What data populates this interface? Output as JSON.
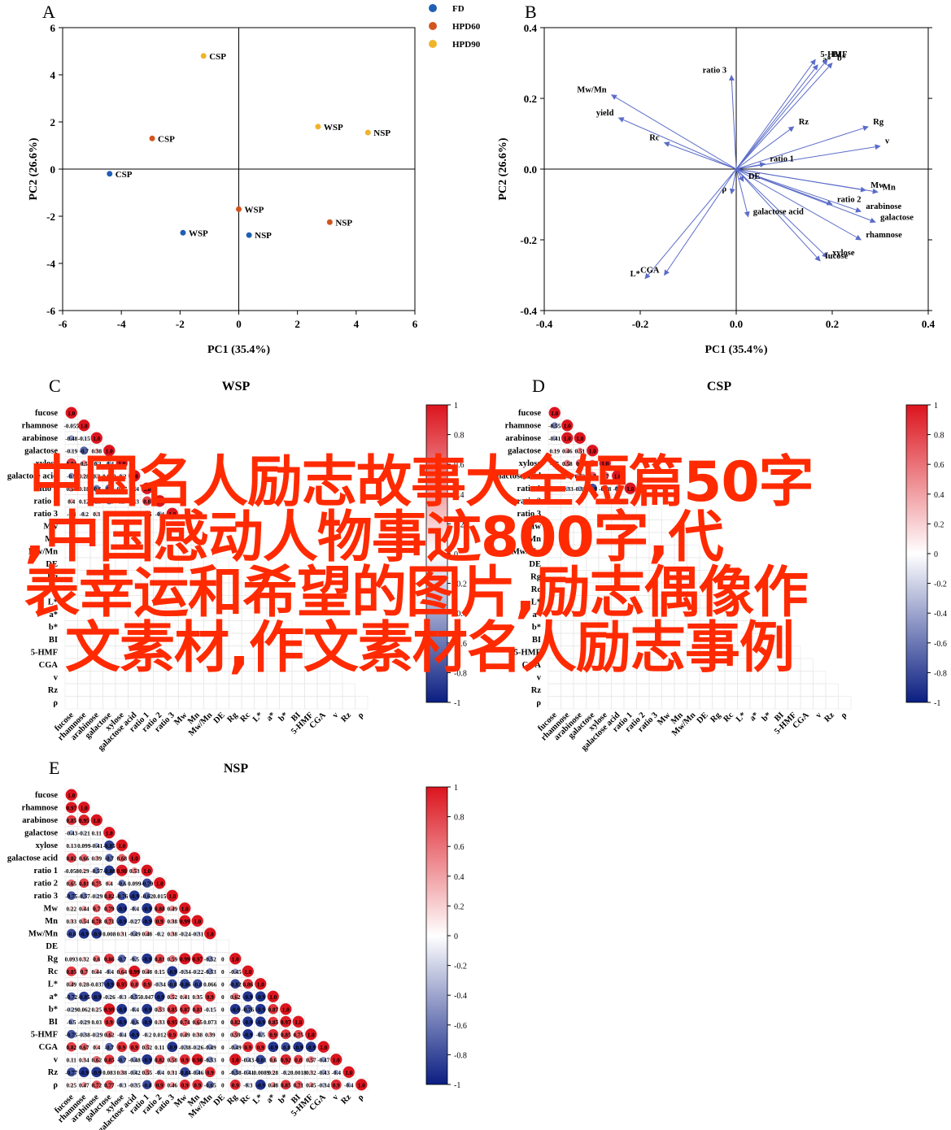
{
  "panels": {
    "A": {
      "letter": "A",
      "xlabel": "PC1 (35.4%)",
      "ylabel": "PC2 (26.6%)",
      "xlim": [
        -6,
        6
      ],
      "ylim": [
        -6,
        6
      ],
      "xticks": [
        "-6",
        "-4",
        "-2",
        "0",
        "2",
        "4",
        "6"
      ],
      "yticks": [
        "-6",
        "-4",
        "-2",
        "0",
        "2",
        "4",
        "6"
      ],
      "legend": [
        {
          "name": "FD",
          "color": "#1f5fb4"
        },
        {
          "name": "HPD60",
          "color": "#d2551e"
        },
        {
          "name": "HPD90",
          "color": "#efb42a"
        }
      ]
    },
    "B": {
      "letter": "B",
      "xlabel": "PC1 (35.4%)",
      "ylabel": "PC2 (26.6%)",
      "xlim": [
        -0.4,
        0.4
      ],
      "ylim": [
        -0.4,
        0.4
      ],
      "xticks": [
        "-0.4",
        "-0.2",
        "0.0",
        "0.2",
        "0.4"
      ],
      "yticks": [
        "-0.4",
        "-0.2",
        "0.0",
        "0.2",
        "0.4"
      ]
    },
    "C": {
      "letter": "C",
      "title": "WSP"
    },
    "D": {
      "letter": "D",
      "title": "CSP"
    },
    "E": {
      "letter": "E",
      "title": "NSP"
    }
  },
  "heatmap_variables": [
    "fucose",
    "rhamnose",
    "arabinose",
    "galactose",
    "xylose",
    "galactose acid",
    "ratio 1",
    "ratio 2",
    "ratio 3",
    "Mw",
    "Mn",
    "Mw/Mn",
    "DE",
    "Rg",
    "Rc",
    "L*",
    "a*",
    "b*",
    "BI",
    "5-HMF",
    "CGA",
    "v",
    "Rz",
    "ρ"
  ],
  "colorbar_ticks": [
    "1",
    "0.8",
    "0.6",
    "0.4",
    "0.2",
    "0",
    "-0.2",
    "-0.4",
    "-0.6",
    "-0.8",
    "-1"
  ],
  "overlay_text": [
    "中国名人励志故事大全短篇50字",
    ",中国感动人物事迹800字,代",
    "表幸运和希望的图片,励志偶像作",
    "文素材,作文素材名人励志事例"
  ],
  "chart_data": [
    {
      "type": "scatter",
      "panel": "A",
      "xlabel": "PC1 (35.4%)",
      "ylabel": "PC2 (26.6%)",
      "xlim": [
        -6,
        6
      ],
      "ylim": [
        -6,
        6
      ],
      "series": [
        {
          "name": "FD",
          "color": "#1f5fb4",
          "points": [
            {
              "x": -4.4,
              "y": -0.2,
              "label": "CSP"
            },
            {
              "x": -1.9,
              "y": -2.7,
              "label": "WSP"
            },
            {
              "x": 0.35,
              "y": -2.8,
              "label": "NSP"
            }
          ]
        },
        {
          "name": "HPD60",
          "color": "#d2551e",
          "points": [
            {
              "x": -2.95,
              "y": 1.3,
              "label": "CSP"
            },
            {
              "x": 0.0,
              "y": -1.7,
              "label": "WSP"
            },
            {
              "x": 3.1,
              "y": -2.25,
              "label": "NSP"
            }
          ]
        },
        {
          "name": "HPD90",
          "color": "#efb42a",
          "points": [
            {
              "x": -1.2,
              "y": 4.8,
              "label": "CSP"
            },
            {
              "x": 2.7,
              "y": 1.8,
              "label": "WSP"
            },
            {
              "x": 4.4,
              "y": 1.55,
              "label": "NSP"
            }
          ]
        }
      ]
    },
    {
      "type": "scatter",
      "panel": "B",
      "subtype": "loading vectors",
      "xlabel": "PC1 (35.4%)",
      "ylabel": "PC2 (26.6%)",
      "xlim": [
        -0.4,
        0.4
      ],
      "ylim": [
        -0.4,
        0.4
      ],
      "vectors": [
        {
          "label": "ratio 3",
          "x": -0.01,
          "y": 0.265
        },
        {
          "label": "Mw/Mn",
          "x": -0.26,
          "y": 0.21
        },
        {
          "label": "yield",
          "x": -0.245,
          "y": 0.145
        },
        {
          "label": "Rc",
          "x": -0.15,
          "y": 0.075
        },
        {
          "label": "5-HMF",
          "x": 0.165,
          "y": 0.31
        },
        {
          "label": "a*",
          "x": 0.17,
          "y": 0.295
        },
        {
          "label": "BI",
          "x": 0.19,
          "y": 0.31
        },
        {
          "label": "b*",
          "x": 0.2,
          "y": 0.3
        },
        {
          "label": "Rz",
          "x": 0.12,
          "y": 0.12
        },
        {
          "label": "Rg",
          "x": 0.275,
          "y": 0.12
        },
        {
          "label": "v",
          "x": 0.3,
          "y": 0.065
        },
        {
          "label": "ratio 1",
          "x": 0.06,
          "y": 0.015
        },
        {
          "label": "Mw",
          "x": 0.27,
          "y": -0.06
        },
        {
          "label": "Mn",
          "x": 0.295,
          "y": -0.065
        },
        {
          "label": "ratio 2",
          "x": 0.2,
          "y": -0.1
        },
        {
          "label": "arabinose",
          "x": 0.26,
          "y": -0.12
        },
        {
          "label": "galactose",
          "x": 0.29,
          "y": -0.15
        },
        {
          "label": "rhamnose",
          "x": 0.26,
          "y": -0.2
        },
        {
          "label": "xylose",
          "x": 0.19,
          "y": -0.25
        },
        {
          "label": "fucose",
          "x": 0.175,
          "y": -0.26
        },
        {
          "label": "DE",
          "x": 0.015,
          "y": -0.035
        },
        {
          "label": "ρ",
          "x": -0.01,
          "y": -0.07
        },
        {
          "label": "galactose acid",
          "x": 0.025,
          "y": -0.135
        },
        {
          "label": "L*",
          "x": -0.19,
          "y": -0.31
        },
        {
          "label": "CGA",
          "x": -0.15,
          "y": -0.3
        }
      ]
    },
    {
      "type": "heatmap",
      "panel": "C",
      "title": "WSP",
      "variables": [
        "fucose",
        "rhamnose",
        "arabinose",
        "galactose",
        "xylose",
        "galactose acid",
        "ratio 1",
        "ratio 2",
        "ratio 3",
        "Mw",
        "Mn",
        "Mw/Mn",
        "DE",
        "Rg",
        "Rc",
        "L*",
        "a*",
        "b*",
        "BI",
        "5-HMF",
        "CGA",
        "v",
        "Rz",
        "ρ"
      ],
      "shape": "lower-triangle",
      "range": [
        -1,
        1
      ],
      "rows": [
        [
          1
        ],
        [
          -0.055,
          1
        ],
        [
          -0.48,
          -0.15,
          1
        ],
        [
          -0.19,
          -0.7,
          0.38,
          1
        ],
        [
          0.84,
          0.5,
          -0.3,
          -0.4,
          1
        ],
        [
          -0.5,
          0.28,
          0.3,
          0.043,
          -0.2,
          1
        ],
        [
          0.54,
          0.18,
          -0.6,
          -0.7,
          0.37,
          -0.4,
          1
        ],
        [
          0.4,
          0.12,
          -0.5,
          -0.6,
          0.5,
          -0.3,
          0.8,
          1
        ],
        [
          -0.3,
          -0.2,
          0.3,
          0.2,
          -0.4,
          0.2,
          -0.5,
          -0.4,
          1
        ]
      ]
    },
    {
      "type": "heatmap",
      "panel": "D",
      "title": "CSP",
      "variables": [
        "fucose",
        "rhamnose",
        "arabinose",
        "galactose",
        "xylose",
        "galactose acid",
        "ratio 1",
        "ratio 2",
        "ratio 3",
        "Mw",
        "Mn",
        "Mw/Mn",
        "DE",
        "Rg",
        "Rc",
        "L*",
        "a*",
        "b*",
        "BI",
        "5-HMF",
        "CGA",
        "v",
        "Rz",
        "ρ"
      ],
      "shape": "lower-triangle",
      "range": [
        -1,
        1
      ],
      "rows": [
        [
          1
        ],
        [
          -0.55,
          1
        ],
        [
          -0.41,
          1.0,
          1
        ],
        [
          0.19,
          0.46,
          0.51,
          1
        ],
        [
          -0.5,
          0.58,
          0.7,
          0.6,
          1
        ],
        [
          0.18,
          0.47,
          0.52,
          0.7,
          0.7,
          1
        ],
        [
          0.33,
          -0.33,
          -0.39,
          -0.8,
          -0.58,
          -0.5,
          1
        ]
      ]
    },
    {
      "type": "heatmap",
      "panel": "E",
      "title": "NSP",
      "variables": [
        "fucose",
        "rhamnose",
        "arabinose",
        "galactose",
        "xylose",
        "galactose acid",
        "ratio 1",
        "ratio 2",
        "ratio 3",
        "Mw",
        "Mn",
        "Mw/Mn",
        "DE",
        "Rg",
        "Rc",
        "L*",
        "a*",
        "b*",
        "BI",
        "5-HMF",
        "CGA",
        "v",
        "Rz",
        "ρ"
      ],
      "shape": "lower-triangle",
      "range": [
        -1,
        1
      ],
      "rows": [
        [
          1
        ],
        [
          0.97,
          1
        ],
        [
          0.85,
          0.95,
          1
        ],
        [
          -0.43,
          -0.21,
          0.11,
          1
        ],
        [
          0.13,
          0.099,
          -0.41,
          -0.85,
          1
        ],
        [
          0.82,
          0.66,
          0.39,
          -0.7,
          0.68,
          1
        ],
        [
          -0.058,
          0.29,
          -0.57,
          -0.88,
          0.98,
          0.53,
          1
        ],
        [
          0.65,
          0.81,
          0.75,
          0.4,
          -0.6,
          0.099,
          -0.79,
          1
        ],
        [
          -0.75,
          -0.57,
          -0.29,
          0.82,
          -0.76,
          -0.9,
          -0.62,
          0.015,
          1
        ],
        [
          0.22,
          0.44,
          0.7,
          0.79,
          -0.9,
          -0.4,
          -0.9,
          0.88,
          0.49,
          1
        ],
        [
          0.33,
          0.54,
          0.78,
          0.71,
          -0.9,
          -0.27,
          -0.9,
          0.9,
          0.38,
          0.99,
          1
        ],
        [
          -0.8,
          -0.9,
          -0.9,
          0.008,
          0.31,
          -0.49,
          0.48,
          -0.2,
          0.38,
          -0.24,
          -0.31,
          1
        ],
        [
          0,
          0,
          0,
          0,
          0,
          0,
          0,
          0,
          0,
          0,
          0,
          0,
          0
        ],
        [
          0.093,
          0.32,
          0.6,
          0.86,
          -0.7,
          -0.5,
          -0.9,
          0.81,
          0.59,
          0.99,
          0.97,
          -0.52,
          0,
          1
        ],
        [
          0.85,
          0.7,
          0.44,
          -0.4,
          0.64,
          0.99,
          0.48,
          0.15,
          -0.9,
          -0.34,
          -0.22,
          -0.53,
          0,
          -0.45,
          1
        ],
        [
          0.49,
          0.28,
          -0.037,
          -0.9,
          0.95,
          0.8,
          0.9,
          -0.34,
          -0.8,
          -0.86,
          -0.8,
          0.066,
          0,
          -0.82,
          0.86,
          1
        ],
        [
          -0.72,
          -0.85,
          -0.9,
          -0.26,
          -0.3,
          -0.55,
          0.047,
          -0.9,
          0.52,
          0.41,
          0.35,
          0.9,
          0,
          0.62,
          -0.9,
          -0.9,
          1
        ],
        [
          -0.29,
          0.062,
          0.25,
          0.99,
          -0.9,
          -0.4,
          -0.9,
          0.53,
          0.85,
          0.87,
          0.81,
          -0.15,
          0,
          -0.9,
          -0.76,
          -0.9,
          0.87,
          1
        ],
        [
          -0.5,
          -0.29,
          0.03,
          0.9,
          -0.9,
          -0.6,
          -0.9,
          0.33,
          0.95,
          0.74,
          0.65,
          0.073,
          0,
          0.82,
          -0.9,
          -0.9,
          0.85,
          0.97,
          1
        ],
        [
          -0.75,
          -0.38,
          -0.29,
          0.62,
          -0.4,
          -0.9,
          -0.2,
          0.012,
          0.9,
          0.49,
          0.38,
          0.39,
          0,
          0.59,
          -0.9,
          -0.5,
          0.9,
          0.85,
          0.75,
          1
        ],
        [
          0.82,
          0.67,
          0.4,
          -0.7,
          0.9,
          0.9,
          0.52,
          0.11,
          -0.9,
          -0.38,
          -0.26,
          -0.49,
          0,
          -0.49,
          0.9,
          0.9,
          -0.9,
          -0.8,
          -0.9,
          -0.9,
          1
        ],
        [
          0.11,
          0.34,
          0.62,
          0.85,
          -0.7,
          -0.48,
          -0.9,
          0.82,
          0.58,
          0.9,
          0.98,
          -0.53,
          0,
          1.0,
          -0.43,
          -0.81,
          0.6,
          0.92,
          0.8,
          0.57,
          -0.47,
          1
        ],
        [
          -0.77,
          -0.9,
          -0.9,
          0.083,
          0.38,
          -0.42,
          0.55,
          -0.4,
          0.31,
          -0.84,
          -0.46,
          0.9,
          0,
          -0.58,
          -0.41,
          -0.0089,
          0.28,
          -0.2,
          0.0018,
          0.32,
          -0.43,
          -0.4,
          1
        ],
        [
          0.25,
          0.47,
          0.72,
          0.77,
          -0.3,
          -0.35,
          -0.8,
          0.9,
          0.46,
          0.9,
          0.9,
          -0.65,
          0,
          0.9,
          -0.3,
          -0.9,
          0.48,
          0.85,
          0.71,
          0.45,
          -0.34,
          0.9,
          -0.4,
          1
        ]
      ]
    }
  ]
}
